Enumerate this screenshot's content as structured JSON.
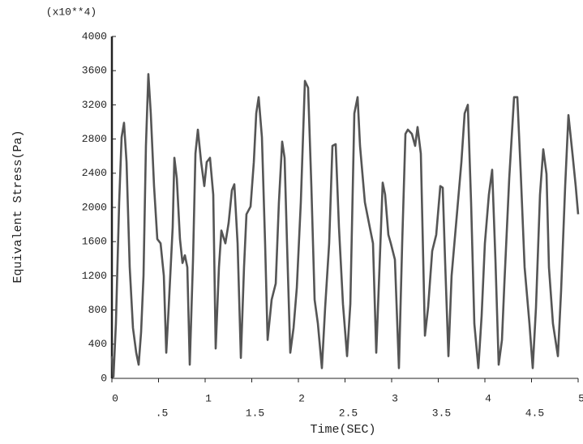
{
  "chart_data": {
    "type": "line",
    "annotation": "(x10**4)",
    "y_label": "Equivalent Stress(Pa)",
    "x_label": "Time(SEC)",
    "color": "#555555",
    "xlim": [
      0,
      5
    ],
    "ylim": [
      0,
      4000
    ],
    "xticks": [
      0,
      {
        "value": 0.5,
        "label": ".5"
      },
      1,
      1.5,
      2,
      2.5,
      3,
      3.5,
      4,
      4.5,
      5
    ],
    "yticks": [
      0,
      400,
      800,
      1200,
      1600,
      2000,
      2400,
      2800,
      3200,
      3600,
      4000
    ],
    "x": [
      0,
      0.017,
      0.043,
      0.078,
      0.104,
      0.13,
      0.157,
      0.191,
      0.226,
      0.261,
      0.287,
      0.313,
      0.339,
      0.365,
      0.391,
      0.417,
      0.452,
      0.487,
      0.522,
      0.557,
      0.583,
      0.609,
      0.652,
      0.67,
      0.696,
      0.73,
      0.757,
      0.783,
      0.809,
      0.835,
      0.87,
      0.896,
      0.922,
      0.957,
      0.991,
      1.017,
      1.052,
      1.087,
      1.113,
      1.148,
      1.174,
      1.217,
      1.252,
      1.287,
      1.313,
      1.348,
      1.383,
      1.417,
      1.443,
      1.487,
      1.522,
      1.548,
      1.574,
      1.609,
      1.643,
      1.67,
      1.713,
      1.757,
      1.791,
      1.826,
      1.852,
      1.878,
      1.913,
      1.948,
      1.983,
      2.026,
      2.07,
      2.104,
      2.139,
      2.174,
      2.209,
      2.252,
      2.287,
      2.33,
      2.365,
      2.4,
      2.435,
      2.478,
      2.522,
      2.557,
      2.6,
      2.635,
      2.661,
      2.713,
      2.765,
      2.8,
      2.835,
      2.87,
      2.904,
      2.93,
      2.965,
      2.991,
      3.035,
      3.078,
      3.113,
      3.148,
      3.174,
      3.217,
      3.252,
      3.278,
      3.313,
      3.357,
      3.391,
      3.435,
      3.478,
      3.522,
      3.548,
      3.574,
      3.609,
      3.643,
      3.696,
      3.748,
      3.783,
      3.817,
      3.852,
      3.887,
      3.93,
      3.965,
      4.0,
      4.043,
      4.078,
      4.113,
      4.148,
      4.183,
      4.209,
      4.261,
      4.313,
      4.348,
      4.383,
      4.426,
      4.478,
      4.513,
      4.548,
      4.591,
      4.626,
      4.661,
      4.687,
      4.73,
      4.783,
      4.817,
      4.861,
      4.896,
      4.939,
      4.974,
      5.0
    ],
    "values": [
      260,
      20,
      640,
      2060,
      2820,
      2990,
      2530,
      1300,
      590,
      300,
      160,
      540,
      1200,
      2720,
      3560,
      3100,
      2250,
      1630,
      1580,
      1200,
      300,
      830,
      1770,
      2580,
      2340,
      1630,
      1350,
      1440,
      1300,
      160,
      1390,
      2630,
      2910,
      2530,
      2250,
      2530,
      2580,
      2150,
      350,
      1300,
      1730,
      1580,
      1820,
      2200,
      2270,
      1580,
      240,
      1300,
      1920,
      2010,
      2530,
      3100,
      3290,
      2820,
      1580,
      450,
      920,
      1110,
      2060,
      2770,
      2580,
      1580,
      300,
      590,
      1060,
      2060,
      3480,
      3400,
      2250,
      920,
      640,
      120,
      830,
      1580,
      2720,
      2740,
      1770,
      870,
      260,
      870,
      3100,
      3290,
      2720,
      2060,
      1770,
      1580,
      300,
      1300,
      2290,
      2150,
      1680,
      1580,
      1390,
      120,
      1580,
      2860,
      2910,
      2860,
      2720,
      2940,
      2630,
      500,
      830,
      1490,
      1680,
      2250,
      2230,
      1350,
      260,
      1200,
      1870,
      2530,
      3100,
      3200,
      2060,
      640,
      120,
      730,
      1580,
      2150,
      2440,
      1390,
      160,
      450,
      1110,
      2340,
      3290,
      3290,
      2440,
      1300,
      640,
      120,
      830,
      2150,
      2680,
      2390,
      1300,
      640,
      260,
      1020,
      2250,
      3080,
      2630,
      2250,
      1920
    ]
  }
}
